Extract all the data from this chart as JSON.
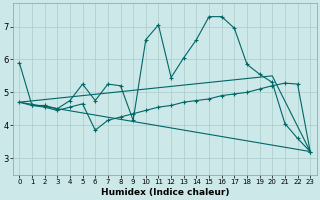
{
  "xlabel": "Humidex (Indice chaleur)",
  "background_color": "#cce8e8",
  "grid_color": "#aacccc",
  "line_color": "#006666",
  "xlim": [
    -0.5,
    23.5
  ],
  "ylim": [
    2.5,
    7.7
  ],
  "xticks": [
    0,
    1,
    2,
    3,
    4,
    5,
    6,
    7,
    8,
    9,
    10,
    11,
    12,
    13,
    14,
    15,
    16,
    17,
    18,
    19,
    20,
    21,
    22,
    23
  ],
  "yticks": [
    3,
    4,
    5,
    6,
    7
  ],
  "line1_x": [
    0,
    1,
    2,
    3,
    4,
    5,
    6,
    7,
    8,
    9,
    10,
    11,
    12,
    13,
    14,
    15,
    16,
    17,
    18,
    19,
    20,
    21,
    22,
    23
  ],
  "line1_y": [
    5.9,
    4.6,
    4.6,
    4.5,
    4.75,
    5.25,
    4.75,
    5.25,
    5.2,
    4.15,
    6.6,
    7.05,
    5.45,
    6.05,
    6.6,
    7.3,
    7.3,
    6.95,
    5.85,
    5.55,
    5.3,
    4.05,
    3.6,
    3.2
  ],
  "line2_x": [
    0,
    1,
    2,
    3,
    4,
    5,
    6,
    7,
    8,
    9,
    10,
    11,
    12,
    13,
    14,
    15,
    16,
    17,
    18,
    19,
    20,
    21,
    22,
    23
  ],
  "line2_y": [
    4.7,
    4.6,
    4.55,
    4.45,
    4.55,
    4.65,
    3.85,
    4.15,
    4.25,
    4.35,
    4.45,
    4.55,
    4.6,
    4.7,
    4.75,
    4.8,
    4.9,
    4.95,
    5.0,
    5.1,
    5.2,
    5.28,
    5.25,
    3.2
  ],
  "line3_x": [
    0,
    23
  ],
  "line3_y": [
    4.7,
    3.2
  ],
  "line4_x": [
    0,
    20,
    23
  ],
  "line4_y": [
    4.7,
    5.5,
    3.2
  ]
}
